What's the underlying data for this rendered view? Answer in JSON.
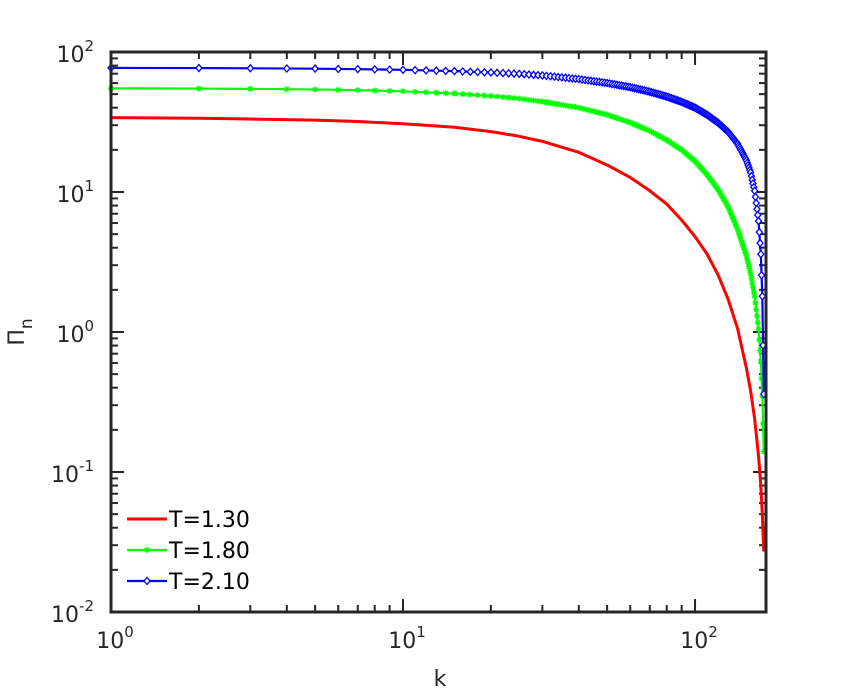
{
  "chart_data": {
    "type": "line",
    "xlabel": "k",
    "ylabel": "Π",
    "ylabel_sub": "n",
    "xscale": "log",
    "yscale": "log",
    "xlim": [
      1,
      175
    ],
    "ylim": [
      0.01,
      100
    ],
    "x_ticks": [
      {
        "value": 1,
        "base": "10",
        "exp": "0"
      },
      {
        "value": 10,
        "base": "10",
        "exp": "1"
      },
      {
        "value": 100,
        "base": "10",
        "exp": "2"
      }
    ],
    "y_ticks": [
      {
        "value": 0.01,
        "base": "10",
        "exp": "-2"
      },
      {
        "value": 0.1,
        "base": "10",
        "exp": "-1"
      },
      {
        "value": 1,
        "base": "10",
        "exp": "0"
      },
      {
        "value": 10,
        "base": "10",
        "exp": "1"
      },
      {
        "value": 100,
        "base": "10",
        "exp": "2"
      }
    ],
    "legend_position": "bottom-left",
    "series": [
      {
        "name": "T=1.30",
        "color": "#ff0000",
        "marker": "none",
        "x": [
          1,
          2,
          3,
          5,
          7,
          10,
          15,
          20,
          25,
          30,
          40,
          50,
          60,
          70,
          80,
          90,
          100,
          110,
          120,
          130,
          140,
          150,
          155,
          160,
          165,
          168,
          170,
          172
        ],
        "y": [
          34,
          33.6,
          33.2,
          32.6,
          31.9,
          30.7,
          29,
          27,
          25,
          23,
          19.2,
          15.6,
          12.7,
          10.2,
          8.2,
          6.3,
          4.8,
          3.6,
          2.55,
          1.7,
          1.05,
          0.55,
          0.38,
          0.24,
          0.13,
          0.08,
          0.05,
          0.027
        ]
      },
      {
        "name": "T=1.80",
        "color": "#00ff00",
        "marker": "star",
        "x": [
          1,
          2,
          3,
          5,
          7,
          10,
          15,
          20,
          25,
          30,
          40,
          50,
          60,
          70,
          80,
          90,
          100,
          110,
          120,
          130,
          140,
          150,
          155,
          160,
          165,
          168,
          170,
          172
        ],
        "y": [
          55,
          54.8,
          54.5,
          54,
          53.4,
          52.4,
          50.5,
          48.5,
          46.5,
          44.2,
          40,
          35.6,
          31.3,
          27.3,
          23.5,
          20,
          16.6,
          13.3,
          10.4,
          7.8,
          5.4,
          3.5,
          2.6,
          1.8,
          1.05,
          0.62,
          0.35,
          0.14
        ]
      },
      {
        "name": "T=2.10",
        "color": "#0000ff",
        "marker": "diamond",
        "x": [
          1,
          2,
          3,
          5,
          7,
          10,
          15,
          20,
          25,
          30,
          40,
          50,
          60,
          70,
          80,
          90,
          100,
          110,
          120,
          130,
          140,
          150,
          155,
          160,
          165,
          168,
          170,
          172
        ],
        "y": [
          77,
          76.8,
          76.5,
          76,
          75.4,
          74.6,
          73,
          71.4,
          69.8,
          68,
          64,
          60,
          56,
          52,
          48,
          44,
          40,
          35.6,
          31.2,
          26.8,
          22,
          16.8,
          13.8,
          10.2,
          6.2,
          3.6,
          1.8,
          0.36
        ]
      }
    ]
  }
}
